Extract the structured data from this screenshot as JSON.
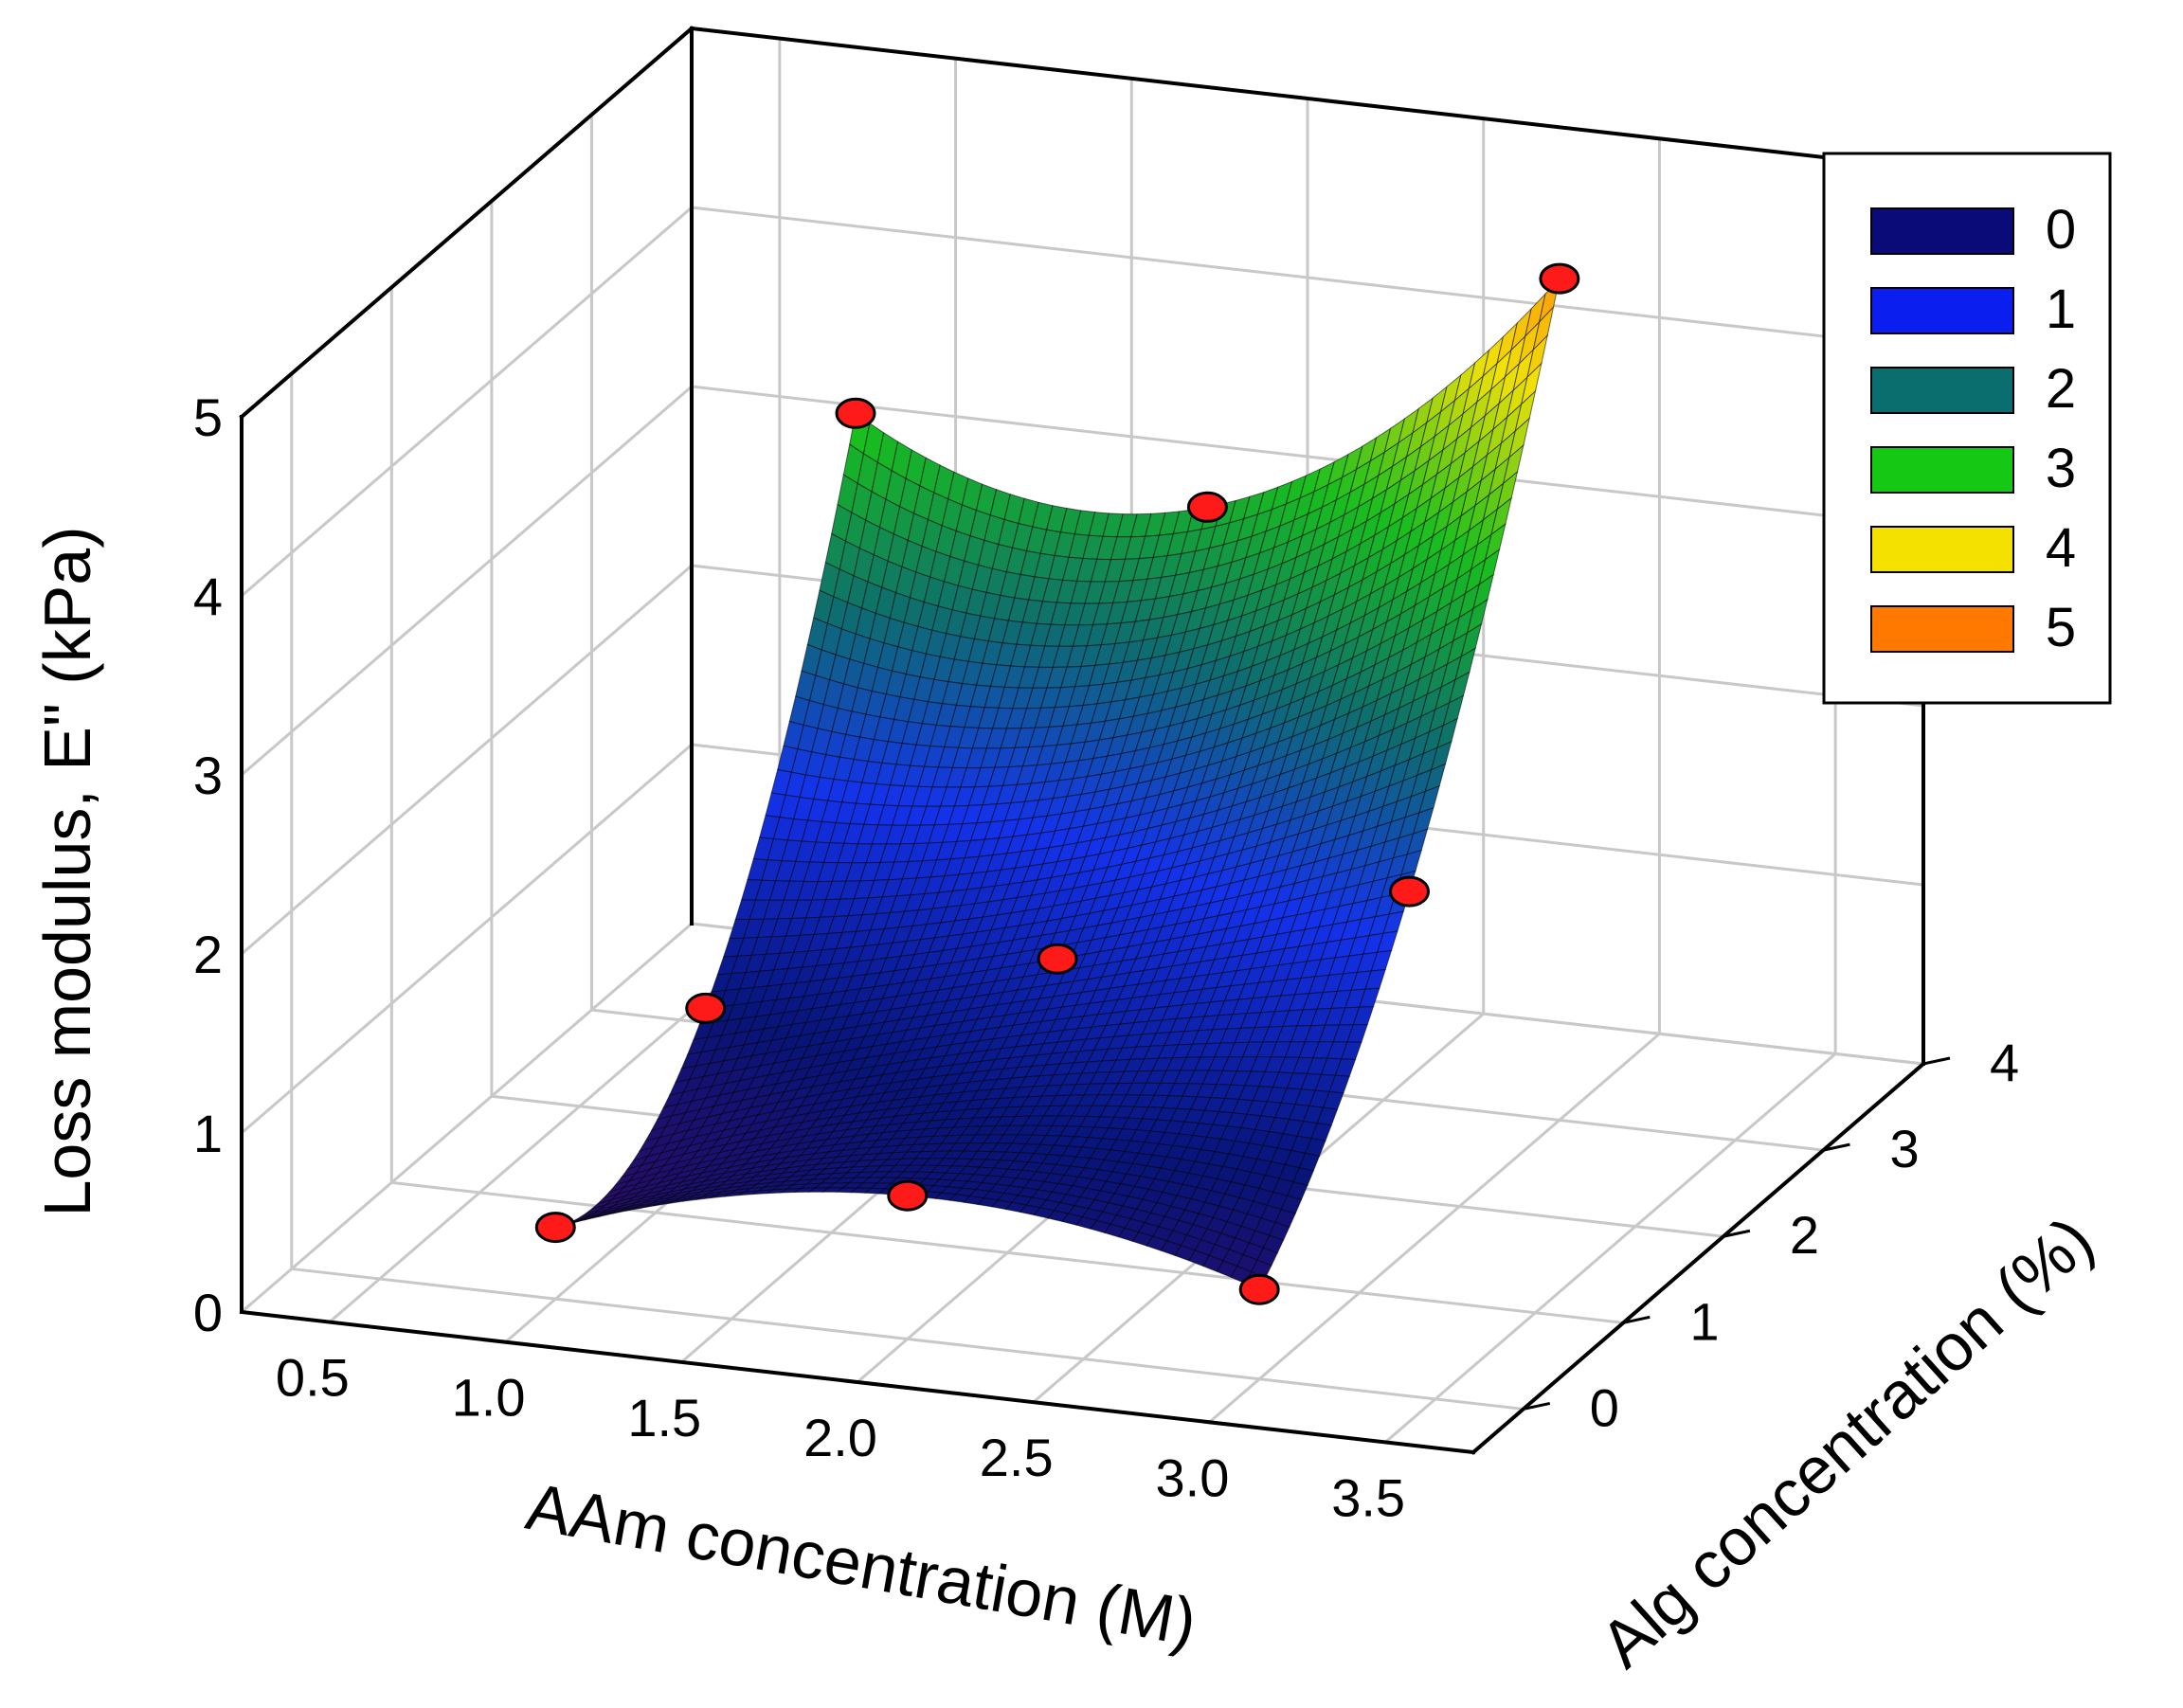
{
  "chart_data": {
    "type": "surface3d",
    "x_axis": {
      "label": "AAm concentration (M)",
      "range": [
        0.25,
        3.75
      ],
      "ticks": [
        "0.5",
        "1.0",
        "1.5",
        "2.0",
        "2.5",
        "3.0",
        "3.5"
      ],
      "tick_values": [
        0.5,
        1.0,
        1.5,
        2.0,
        2.5,
        3.0,
        3.5
      ]
    },
    "y_axis": {
      "label": "Alg concentration (%)",
      "range": [
        -0.5,
        4
      ],
      "ticks": [
        "0",
        "1",
        "2",
        "3",
        "4"
      ],
      "tick_values": [
        0,
        1,
        2,
        3,
        4
      ]
    },
    "z_axis": {
      "label": "Loss modulus, E\" (kPa)",
      "range": [
        0,
        5
      ],
      "ticks": [
        "0",
        "1",
        "2",
        "3",
        "4",
        "5"
      ],
      "tick_values": [
        0,
        1,
        2,
        3,
        4,
        5
      ]
    },
    "legend": {
      "position": "top-right",
      "entries": [
        {
          "label": "0",
          "color": "#0a0a78"
        },
        {
          "label": "1",
          "color": "#0b1ef0"
        },
        {
          "label": "2",
          "color": "#0b6e6e"
        },
        {
          "label": "3",
          "color": "#14c814"
        },
        {
          "label": "4",
          "color": "#f5e100"
        },
        {
          "label": "5",
          "color": "#ff7800"
        }
      ]
    },
    "points": [
      {
        "x": 1.0,
        "y": 0,
        "z": 0.4
      },
      {
        "x": 2.0,
        "y": 0,
        "z": 0.8
      },
      {
        "x": 3.0,
        "y": 0,
        "z": 0.5
      },
      {
        "x": 1.0,
        "y": 1.5,
        "z": 0.9
      },
      {
        "x": 2.0,
        "y": 1.5,
        "z": 1.4
      },
      {
        "x": 3.0,
        "y": 1.5,
        "z": 2.0
      },
      {
        "x": 1.0,
        "y": 3.0,
        "z": 3.5
      },
      {
        "x": 2.0,
        "y": 3.0,
        "z": 3.2
      },
      {
        "x": 3.0,
        "y": 3.0,
        "z": 4.7
      }
    ],
    "marker_color": "#ff1a1a"
  }
}
